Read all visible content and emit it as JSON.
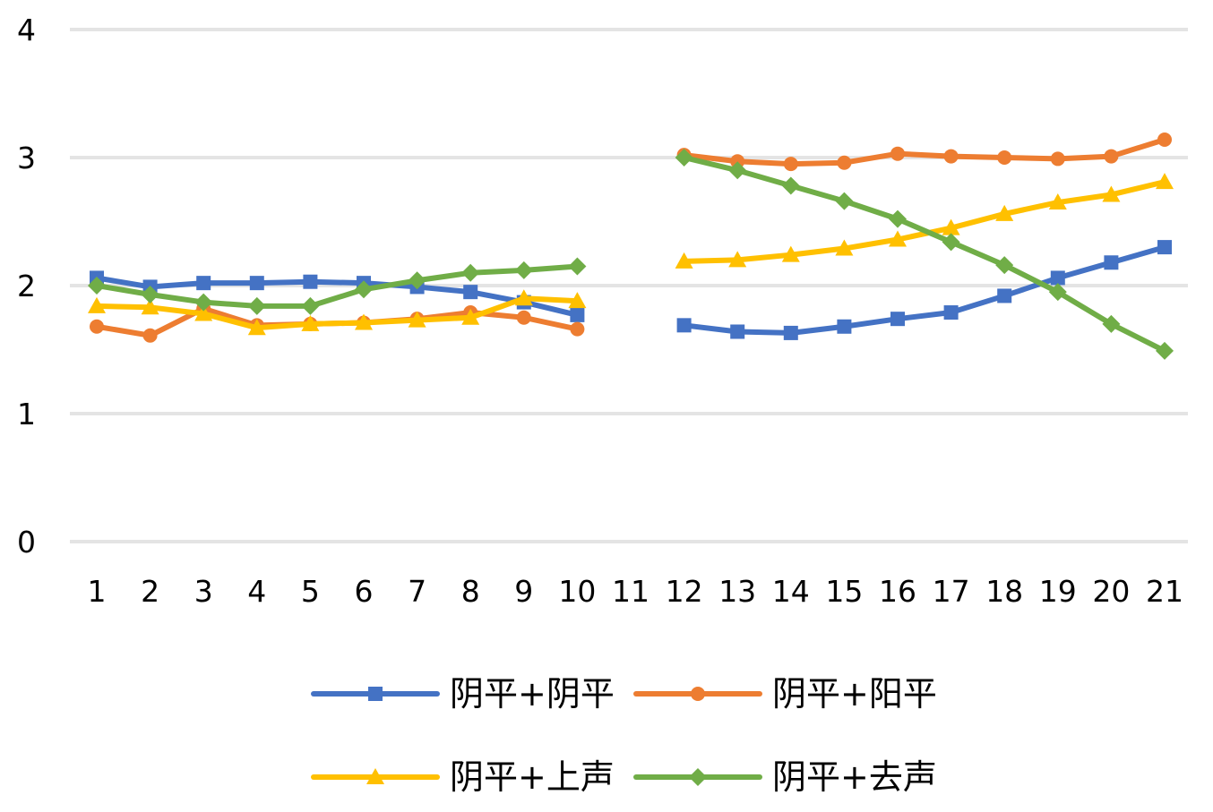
{
  "chart_data": {
    "type": "line",
    "title": "",
    "xlabel": "",
    "ylabel": "",
    "categories": [
      "1",
      "2",
      "3",
      "4",
      "5",
      "6",
      "7",
      "8",
      "9",
      "10",
      "11",
      "12",
      "13",
      "14",
      "15",
      "16",
      "17",
      "18",
      "19",
      "20",
      "21"
    ],
    "ylim": [
      0,
      4
    ],
    "yticks": [
      "0",
      "1",
      "2",
      "3",
      "4"
    ],
    "grid": true,
    "legend_position": "bottom",
    "series": [
      {
        "name": "阴平+阴平",
        "color": "#4472C4",
        "marker": "square",
        "values": [
          2.06,
          1.99,
          2.02,
          2.02,
          2.03,
          2.02,
          1.99,
          1.95,
          1.87,
          1.77,
          null,
          1.69,
          1.64,
          1.63,
          1.68,
          1.74,
          1.79,
          1.92,
          2.06,
          2.18,
          2.3
        ]
      },
      {
        "name": "阴平+阳平",
        "color": "#ED7D31",
        "marker": "circle",
        "values": [
          1.68,
          1.61,
          1.82,
          1.69,
          1.7,
          1.71,
          1.74,
          1.79,
          1.75,
          1.66,
          null,
          3.02,
          2.97,
          2.95,
          2.96,
          3.03,
          3.01,
          3.0,
          2.99,
          3.01,
          3.14
        ]
      },
      {
        "name": "阴平+上声",
        "color": "#FFC000",
        "marker": "triangle",
        "values": [
          1.84,
          1.83,
          1.78,
          1.67,
          1.7,
          1.71,
          1.73,
          1.75,
          1.9,
          1.88,
          null,
          2.19,
          2.2,
          2.24,
          2.29,
          2.36,
          2.45,
          2.56,
          2.65,
          2.71,
          2.81
        ]
      },
      {
        "name": "阴平+去声",
        "color": "#70AD47",
        "marker": "diamond",
        "values": [
          2.0,
          1.93,
          1.87,
          1.84,
          1.84,
          1.97,
          2.04,
          2.1,
          2.12,
          2.15,
          null,
          3.0,
          2.9,
          2.78,
          2.66,
          2.52,
          2.34,
          2.16,
          1.95,
          1.7,
          1.49
        ]
      }
    ]
  }
}
